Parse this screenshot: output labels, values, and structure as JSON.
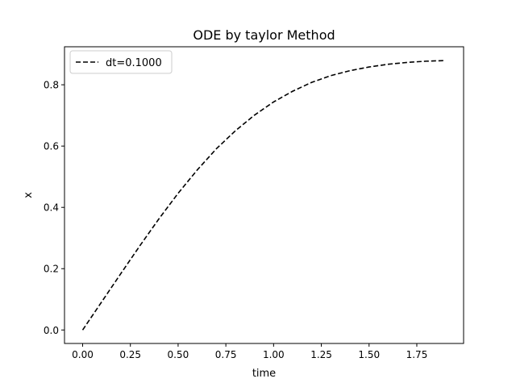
{
  "chart_data": {
    "type": "line",
    "title": "ODE by taylor Method",
    "xlabel": "time",
    "ylabel": "x",
    "xlim": [
      -0.095,
      1.995
    ],
    "ylim": [
      -0.044,
      0.924
    ],
    "xticks": [
      0.0,
      0.25,
      0.5,
      0.75,
      1.0,
      1.25,
      1.5,
      1.75
    ],
    "xtick_labels": [
      "0.00",
      "0.25",
      "0.50",
      "0.75",
      "1.00",
      "1.25",
      "1.50",
      "1.75"
    ],
    "yticks": [
      0.0,
      0.2,
      0.4,
      0.6,
      0.8
    ],
    "ytick_labels": [
      "0.0",
      "0.2",
      "0.4",
      "0.6",
      "0.8"
    ],
    "grid": false,
    "legend_position": "top-left",
    "series": [
      {
        "name": "dt=0.1000",
        "color": "#000000",
        "line_style": "dashed",
        "x": [
          0.0,
          0.1,
          0.2,
          0.3,
          0.4,
          0.5,
          0.6,
          0.7,
          0.8,
          0.9,
          1.0,
          1.1,
          1.2,
          1.3,
          1.4,
          1.5,
          1.6,
          1.7,
          1.8,
          1.9
        ],
        "y": [
          0.0,
          0.092,
          0.184,
          0.275,
          0.363,
          0.446,
          0.522,
          0.591,
          0.65,
          0.701,
          0.744,
          0.779,
          0.808,
          0.83,
          0.846,
          0.858,
          0.867,
          0.873,
          0.877,
          0.879
        ]
      }
    ]
  }
}
